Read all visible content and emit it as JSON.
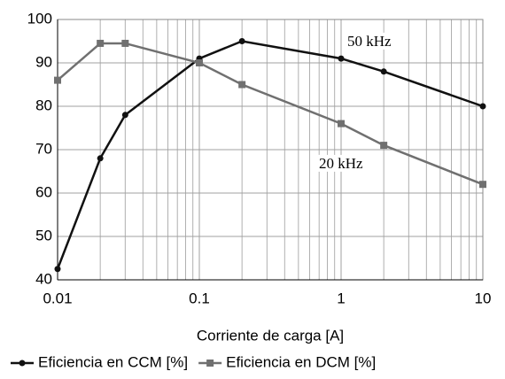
{
  "chart_data": {
    "type": "line",
    "xlabel": "Corriente de carga [A]",
    "x": [
      0.01,
      0.02,
      0.03,
      0.1,
      0.2,
      1,
      2,
      10
    ],
    "series": [
      {
        "name": "Eficiencia en CCM [%]",
        "color": "#111111",
        "marker": "circle",
        "values": [
          42.5,
          68,
          78,
          91,
          95,
          91,
          88,
          80
        ]
      },
      {
        "name": "Eficiencia en DCM [%]",
        "color": "#707070",
        "marker": "square",
        "values": [
          86,
          94.5,
          94.5,
          90,
          85,
          76,
          71,
          62
        ]
      }
    ],
    "annotations": [
      "50 kHz",
      "20 kHz"
    ],
    "xscale": "log",
    "xlim": [
      0.01,
      10
    ],
    "xticks": [
      0.01,
      0.1,
      1,
      10
    ],
    "xminorticks": [
      0.02,
      0.03,
      0.04,
      0.05,
      0.06,
      0.07,
      0.08,
      0.09,
      0.2,
      0.3,
      0.4,
      0.5,
      0.6,
      0.7,
      0.8,
      0.9,
      2,
      3,
      4,
      5,
      6,
      7,
      8,
      9
    ],
    "ylim": [
      40,
      100
    ],
    "yticks": [
      40,
      50,
      60,
      70,
      80,
      90,
      100
    ],
    "grid": true,
    "legend": "bottom"
  }
}
